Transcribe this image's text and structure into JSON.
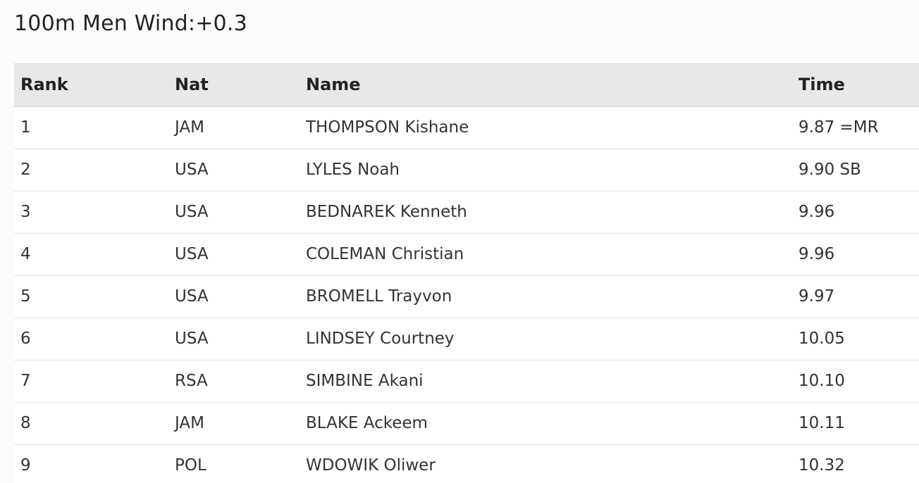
{
  "title": "100m Men Wind:+0.3",
  "table": {
    "headers": {
      "rank": "Rank",
      "nat": "Nat",
      "name": "Name",
      "time": "Time"
    },
    "rows": [
      {
        "rank": "1",
        "nat": "JAM",
        "name": "THOMPSON Kishane",
        "time": "9.87 =MR"
      },
      {
        "rank": "2",
        "nat": "USA",
        "name": "LYLES Noah",
        "time": "9.90 SB"
      },
      {
        "rank": "3",
        "nat": "USA",
        "name": "BEDNAREK Kenneth",
        "time": "9.96"
      },
      {
        "rank": "4",
        "nat": "USA",
        "name": "COLEMAN Christian",
        "time": "9.96"
      },
      {
        "rank": "5",
        "nat": "USA",
        "name": "BROMELL Trayvon",
        "time": "9.97"
      },
      {
        "rank": "6",
        "nat": "USA",
        "name": "LINDSEY Courtney",
        "time": "10.05"
      },
      {
        "rank": "7",
        "nat": "RSA",
        "name": "SIMBINE Akani",
        "time": "10.10"
      },
      {
        "rank": "8",
        "nat": "JAM",
        "name": "BLAKE Ackeem",
        "time": "10.11"
      },
      {
        "rank": "9",
        "nat": "POL",
        "name": "WDOWIK Oliwer",
        "time": "10.32"
      }
    ]
  }
}
